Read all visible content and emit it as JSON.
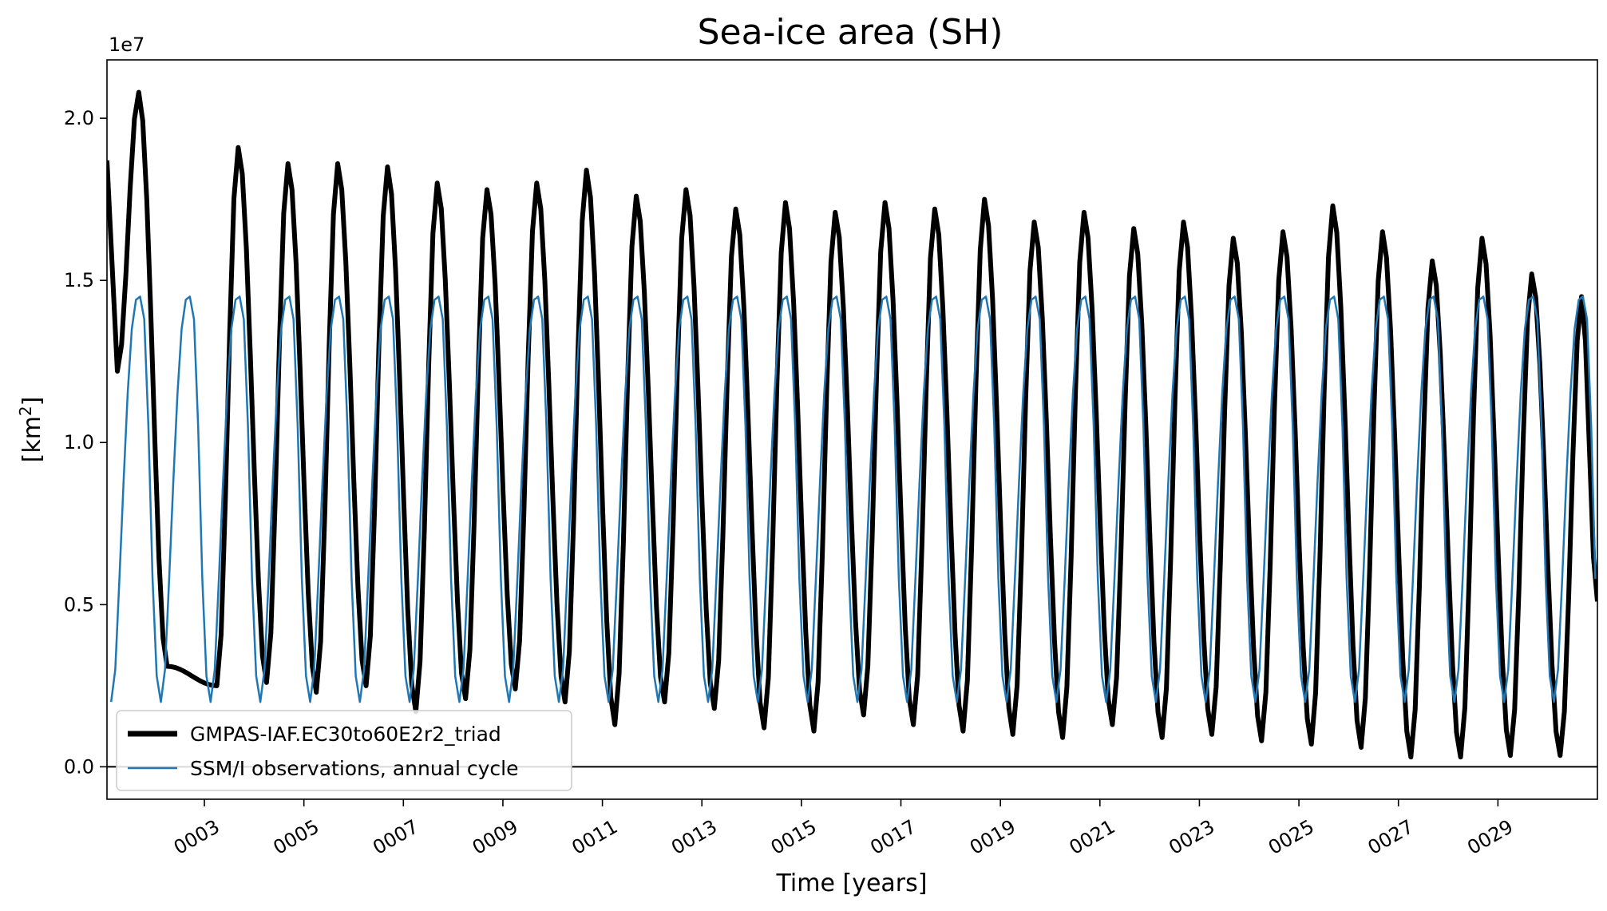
{
  "chart_data": {
    "type": "line",
    "title": "Sea-ice area (SH)",
    "xlabel": "Time [years]",
    "ylabel_base": "[km",
    "ylabel_sup": "2",
    "ylabel_close": "]",
    "y_offset_label": "1e7",
    "x_tick_labels": [
      "0003",
      "0005",
      "0007",
      "0009",
      "0011",
      "0013",
      "0015",
      "0017",
      "0019",
      "0021",
      "0023",
      "0025",
      "0027",
      "0029"
    ],
    "x_tick_values": [
      3,
      5,
      7,
      9,
      11,
      13,
      15,
      17,
      19,
      21,
      23,
      25,
      27,
      29
    ],
    "y_tick_labels": [
      "0.0",
      "0.5",
      "1.0",
      "1.5",
      "2.0"
    ],
    "y_tick_values": [
      0,
      5000000,
      10000000,
      15000000,
      20000000
    ],
    "xlim": [
      1.042,
      31.0
    ],
    "ylim": [
      -1000000,
      21800000
    ],
    "grid": false,
    "legend_placement": "bottom-left",
    "zero_line": true,
    "series": [
      {
        "name": "GMPAS-IAF.EC30to60E2r2_triad",
        "color": "#000000",
        "peak_x": [
          1.68,
          3.68,
          4.68,
          5.68,
          6.68,
          7.68,
          8.68,
          9.68,
          10.68,
          11.68,
          12.68,
          13.68,
          14.68,
          15.68,
          16.68,
          17.68,
          18.68,
          19.68,
          20.68,
          21.68,
          22.68,
          23.68,
          24.68,
          25.68,
          26.68,
          27.68,
          28.68,
          29.68,
          30.68
        ],
        "peak_y": [
          20800000,
          19100000,
          18600000,
          18600000,
          18500000,
          18000000,
          17800000,
          18000000,
          18400000,
          17600000,
          17800000,
          17200000,
          17400000,
          17100000,
          17400000,
          17200000,
          17500000,
          16800000,
          17100000,
          16600000,
          16800000,
          16300000,
          16500000,
          17300000,
          16500000,
          15600000,
          16300000,
          15200000,
          14500000
        ],
        "trough_x": [
          1.25,
          2.25,
          3.25,
          4.25,
          5.25,
          6.25,
          7.25,
          8.25,
          9.25,
          10.25,
          11.25,
          12.25,
          13.25,
          14.25,
          15.25,
          16.25,
          17.25,
          18.25,
          19.25,
          20.25,
          21.25,
          22.25,
          23.25,
          24.25,
          25.25,
          26.25,
          27.25,
          28.25,
          29.25,
          30.25
        ],
        "trough_y": [
          12200000,
          3100000,
          2500000,
          2600000,
          2300000,
          2500000,
          1700000,
          2100000,
          2400000,
          2000000,
          1300000,
          2000000,
          1800000,
          1200000,
          1100000,
          1600000,
          1300000,
          1100000,
          1000000,
          900000,
          1300000,
          900000,
          1000000,
          800000,
          700000,
          600000,
          300000,
          300000,
          350000,
          350000
        ],
        "start": [
          1.042,
          18700000
        ],
        "end": [
          31.0,
          5100000
        ]
      },
      {
        "name": "SSM/I observations, annual cycle",
        "color": "#1f77b4",
        "monthly_climatology": [
          2800000,
          2000000,
          3000000,
          5800000,
          8800000,
          11500000,
          13500000,
          14400000,
          14500000,
          13800000,
          10500000,
          5800000
        ]
      }
    ]
  }
}
